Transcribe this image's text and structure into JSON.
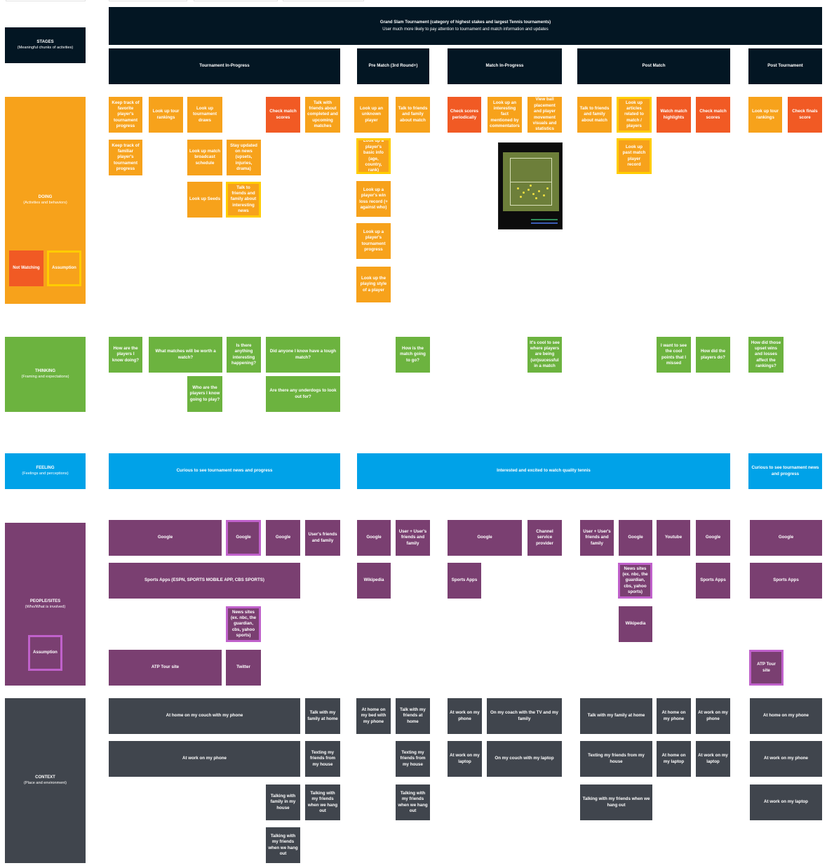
{
  "lanes": {
    "stages": {
      "title": "STAGES",
      "subtitle": "(Meaningful chunks of activities)"
    },
    "doing": {
      "title": "DOING",
      "subtitle": "(Activities and behaviors)"
    },
    "thinking": {
      "title": "THINKING",
      "subtitle": "(Framing and expectations)"
    },
    "feeling": {
      "title": "FEELING",
      "subtitle": "(Feelings and perceptions)"
    },
    "people": {
      "title": "PEOPLE/SITES",
      "subtitle": "(Who/What is involved)"
    },
    "context": {
      "title": "CONTEXT",
      "subtitle": "(Place and environment)"
    }
  },
  "legend": {
    "not_watching": "Not Watching",
    "assumption_yellow": "Assumption",
    "assumption_purple": "Assumption"
  },
  "header": {
    "title": "Grand Slam Tournament (category of highest stakes and largest Tennis tournaments)",
    "subtitle": "User much more likely to pay attention to tournament and match information and updates"
  },
  "stages": [
    "Tournament In-Progress",
    "Pre Match (3rd Round+)",
    "Match In-Progress",
    "Post Match",
    "Post Tournament"
  ],
  "doing": {
    "ti_1": "Keep track of favorite player's tournament progress",
    "ti_2": "Look up tour rankings",
    "ti_3": "Look up tournament draws",
    "ti_4": "Check match scores",
    "ti_5": "Talk with friends about completed and upcoming matches",
    "ti_6": "Keep track of familiar player's tournament progress",
    "ti_7": "Look up match broadcast schedule",
    "ti_8": "Stay updated on news (upsets, injuries, drama)",
    "ti_9": "Look up Seeds",
    "ti_10": "Talk to friends and family about interesting news",
    "pm_1": "Look up an unknown player",
    "pm_2": "Talk to friends and family about match",
    "pm_3": "Look up a player's basic info (age, country, rank)",
    "pm_4": "Look up a player's win loss record (+ against who)",
    "pm_5": "Look up a player's tournament progress",
    "pm_6": "Look up the playing style of a player",
    "mi_1": "Check scores periodically",
    "mi_2": "Look up an interesting fact mentioned by commentators",
    "mi_3": "View ball placement and player movement visuals and statistics",
    "po_1": "Talk to friends and family about match",
    "po_2": "Look up articles related to match / players",
    "po_3": "Watch match highlights",
    "po_4": "Check match scores",
    "po_5": "Look up past match player record",
    "pt_1": "Look up tour rankings",
    "pt_2": "Check finals score"
  },
  "thinking": {
    "t1": "How are the players I know doing?",
    "t2": "What matches will be worth a watch?",
    "t3": "Is there anything interesting happening?",
    "t4": "Did anyone I know have a tough match?",
    "t5": "Who are the players I know going to play?",
    "t6": "Are there any underdogs to look out for?",
    "t7": "How is the match going to go?",
    "t8": "It's cool to see where players are being (un)sucessful in a match",
    "t9": "I want to see the cool points that I missed",
    "t10": "How did the players do?",
    "t11": "How did those upset wins and losses affect the rankings?"
  },
  "feeling": {
    "f1": "Curious to see tournament news and progress",
    "f2": "Interested and excited to watch quality tennis",
    "f3": "Curious to see tournament news and progress"
  },
  "people": {
    "p1": "Google",
    "p2": "Google",
    "p3": "Google",
    "p4": "User's friends and family",
    "p5": "Sports Apps  (ESPN, SPORTS MOBILE APP, CBS SPORTS)",
    "p6": "News sites (ex. nbc, the guardian, cbs, yahoo sports)",
    "p7": "ATP Tour site",
    "p8": "Twitter",
    "p9": "Google",
    "p10": "User + User's friends and family",
    "p11": "Wikipedia",
    "p12": "Google",
    "p13": "Channel service provider",
    "p14": "Sports Apps",
    "p15": "User + User's friends and family",
    "p16": "Google",
    "p17": "Youtube",
    "p18": "Google",
    "p19": "News sites (ex. nbc, the guardian, cbs, yahoo sports)",
    "p20": "Sports Apps",
    "p21": "Wikipedia",
    "p22": "Google",
    "p23": "Sports Apps",
    "p24": "ATP Tour site"
  },
  "context": {
    "c1": "At home on my couch with my phone",
    "c2": "Talk with my family at home",
    "c3": "At work on my phone",
    "c4": "Texting my friends from my house",
    "c5": "Talking with family in my house",
    "c6": "Talking with my friends when we hang out",
    "c7": "At home on my bed with my phone",
    "c8": "Talk with my friends at home",
    "c9": "Texting my friends from my house",
    "c10": "Talking with my friends when we hang out",
    "c11": "At work on my phone",
    "c12": "On my coach with the TV and my family",
    "c13": "At work on my laptop",
    "c14": "On my couch with my laptop",
    "c15": "Talk with my family at home",
    "c16": "At home on my phone",
    "c17": "At work on my phone",
    "c18": "Texting my friends from my house",
    "c19": "At home on my laptop",
    "c20": "At work on my laptop",
    "c21": "Talking with my friends when we hang out",
    "c22": "At home on my phone",
    "c23": "At work on my phone",
    "c24": "At work on my laptop"
  }
}
